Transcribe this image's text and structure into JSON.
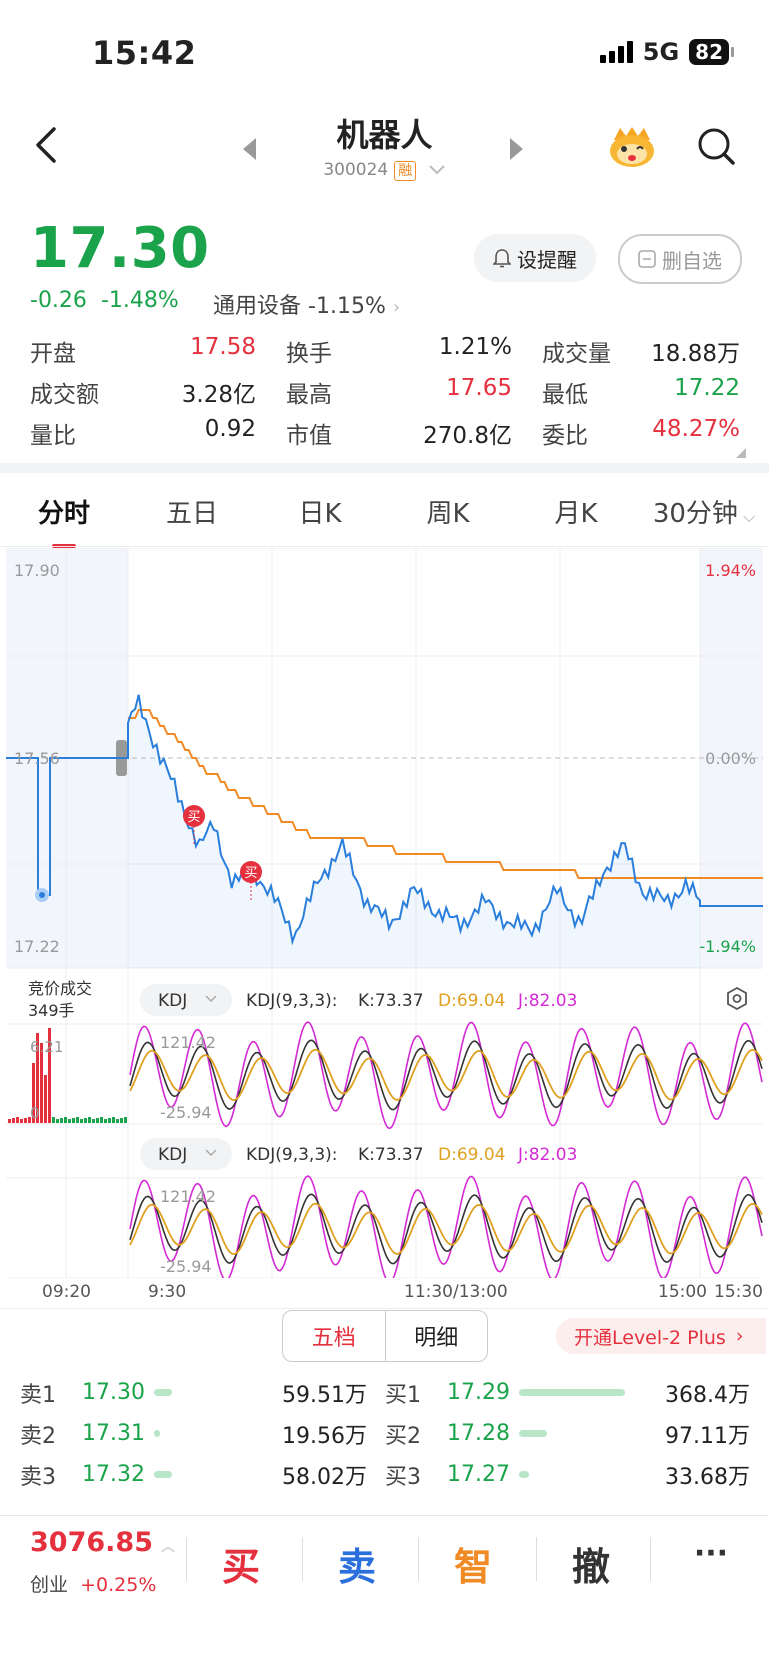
{
  "status_bar": {
    "time": "15:42",
    "network": "5G",
    "battery": "82"
  },
  "header": {
    "stock_name": "机器人",
    "stock_code": "300024",
    "margin_badge": "融"
  },
  "quote": {
    "price": "17.30",
    "change": "-0.26",
    "change_pct": "-1.48%",
    "industry": "通用设备",
    "industry_change": "-1.15%",
    "alert_button": "设提醒",
    "remove_button": "删自选"
  },
  "stats": [
    [
      {
        "label": "开盘",
        "value": "17.58",
        "color": "red"
      },
      {
        "label": "换手",
        "value": "1.21%",
        "color": "black"
      },
      {
        "label": "成交量",
        "value": "18.88万",
        "color": "black"
      }
    ],
    [
      {
        "label": "成交额",
        "value": "3.28亿",
        "color": "black"
      },
      {
        "label": "最高",
        "value": "17.65",
        "color": "red"
      },
      {
        "label": "最低",
        "value": "17.22",
        "color": "green"
      }
    ],
    [
      {
        "label": "量比",
        "value": "0.92",
        "color": "black"
      },
      {
        "label": "市值",
        "value": "270.8亿",
        "color": "black"
      },
      {
        "label": "委比",
        "value": "48.27%",
        "color": "red"
      }
    ]
  ],
  "tabs": [
    "分时",
    "五日",
    "日K",
    "周K",
    "月K",
    "30分钟"
  ],
  "chart": {
    "price_high": "17.90",
    "price_mid": "17.56",
    "price_low": "17.22",
    "pct_high": "1.94%",
    "pct_mid": "0.00%",
    "pct_low": "-1.94%",
    "auction_label": "竞价成交",
    "auction_volume": "349手",
    "auction_axis_top": "6.21",
    "auction_axis_bottom": "0",
    "buy_marker": "买",
    "indicator_name": "KDJ",
    "kdj_params": "KDJ(9,3,3):",
    "kdj_k": "K:73.37",
    "kdj_d": "D:69.04",
    "kdj_j": "J:82.03",
    "kdj_max": "121.42",
    "kdj_min": "-25.94",
    "time_labels": [
      "09:20",
      "9:30",
      "11:30/13:00",
      "15:00",
      "15:30"
    ],
    "colors": {
      "price_line": "#2a7fdc",
      "avg_line": "#f08a24",
      "k_line": "#333333",
      "d_line": "#e0a020",
      "j_line": "#d42ad4"
    }
  },
  "order_book": {
    "tab_five": "五档",
    "tab_detail": "明细",
    "level2_button": "开通Level-2 Plus",
    "sell": [
      {
        "label": "卖1",
        "price": "17.30",
        "volume": "59.51万",
        "bar": 0.16
      },
      {
        "label": "卖2",
        "price": "17.31",
        "volume": "19.56万",
        "bar": 0.05
      },
      {
        "label": "卖3",
        "price": "17.32",
        "volume": "58.02万",
        "bar": 0.16
      }
    ],
    "buy": [
      {
        "label": "买1",
        "price": "17.29",
        "volume": "368.4万",
        "bar": 1.0
      },
      {
        "label": "买2",
        "price": "17.28",
        "volume": "97.11万",
        "bar": 0.26
      },
      {
        "label": "买3",
        "price": "17.27",
        "volume": "33.68万",
        "bar": 0.09
      }
    ]
  },
  "bottom_bar": {
    "index_value": "3076.85",
    "index_name": "创业",
    "index_change": "+0.25%",
    "buy": "买",
    "sell": "卖",
    "smart": "智",
    "cancel": "撤",
    "more": "···"
  }
}
